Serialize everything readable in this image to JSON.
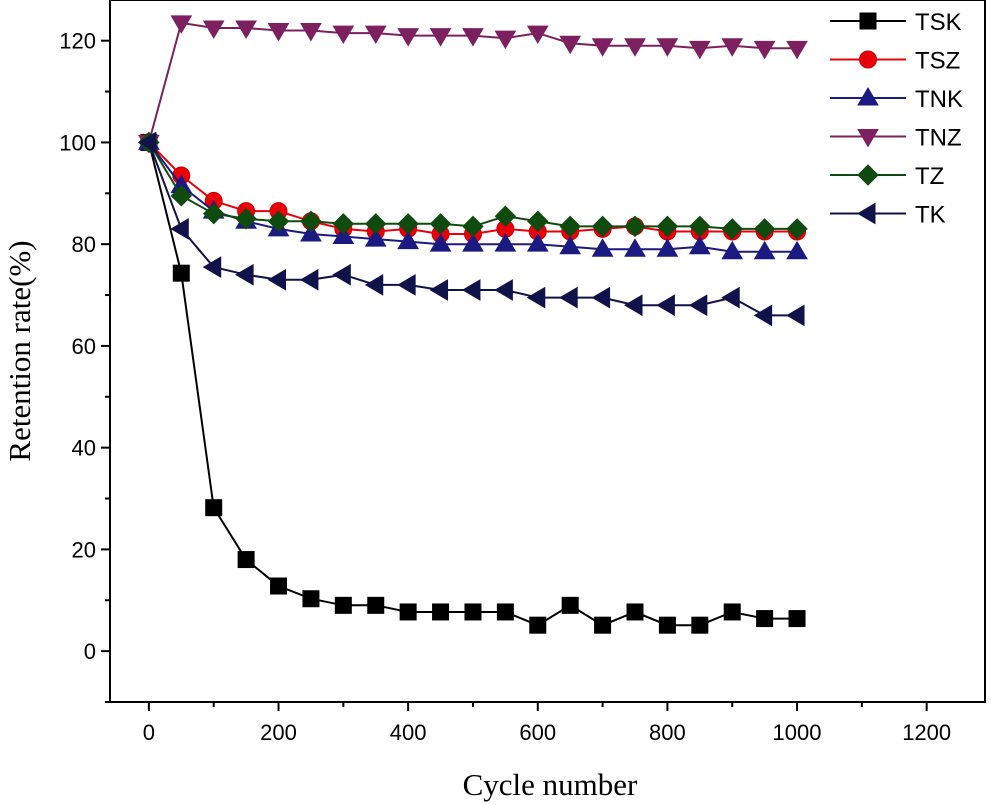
{
  "chart_data": {
    "type": "line",
    "title": "",
    "xlabel": "Cycle number",
    "ylabel": "Retention rate(%)",
    "xlim": [
      -60,
      1290
    ],
    "ylim": [
      -10,
      128
    ],
    "xticks": [
      0,
      200,
      400,
      600,
      800,
      1000,
      1200
    ],
    "yticks": [
      0,
      20,
      40,
      60,
      80,
      100,
      120
    ],
    "x": [
      0,
      50,
      100,
      150,
      200,
      250,
      300,
      350,
      400,
      450,
      500,
      550,
      600,
      650,
      700,
      750,
      800,
      850,
      900,
      950,
      1000
    ],
    "grid": false,
    "legend_position": "top-right",
    "series": [
      {
        "name": "TSK",
        "color": "#000000",
        "marker": "square",
        "values": [
          100,
          74.3,
          28.2,
          18,
          12.8,
          10.3,
          9,
          9,
          7.7,
          7.7,
          7.7,
          7.7,
          5.1,
          9,
          5.1,
          7.7,
          5.1,
          5.1,
          7.7,
          6.4,
          6.4
        ]
      },
      {
        "name": "TSZ",
        "color": "#e8000b",
        "marker": "circle",
        "values": [
          100,
          93.5,
          88.5,
          86.5,
          86.5,
          84.5,
          83,
          82.5,
          83,
          82,
          82,
          83,
          82.5,
          82.5,
          83,
          83.5,
          82.5,
          82.5,
          82.5,
          82.5,
          82.5
        ]
      },
      {
        "name": "TNK",
        "color": "#1a1a80",
        "marker": "triangle-up",
        "values": [
          100,
          91.5,
          86.5,
          84.5,
          83,
          82,
          81.5,
          81,
          80.5,
          80,
          80,
          80,
          80,
          79.5,
          79,
          79,
          79,
          79.5,
          78.5,
          78.5,
          78.5
        ]
      },
      {
        "name": "TNZ",
        "color": "#7d2060",
        "marker": "triangle-down",
        "values": [
          100,
          123.5,
          122.5,
          122.5,
          122,
          122,
          121.5,
          121.5,
          121,
          121,
          121,
          120.5,
          121.5,
          119.5,
          119,
          119,
          119,
          118.5,
          119,
          118.5,
          118.5
        ]
      },
      {
        "name": "TZ",
        "color": "#0f4a0f",
        "marker": "diamond",
        "values": [
          100,
          89.5,
          86,
          85,
          84.5,
          84.5,
          84,
          84,
          84,
          84,
          83.5,
          85.5,
          84.5,
          83.5,
          83.5,
          83.5,
          83.5,
          83.5,
          83,
          83,
          83
        ]
      },
      {
        "name": "TK",
        "color": "#12124a",
        "marker": "triangle-left",
        "values": [
          100,
          83,
          75.5,
          74,
          73,
          73,
          74,
          72,
          72,
          71,
          71,
          71,
          69.5,
          69.5,
          69.5,
          68,
          68,
          68,
          69.5,
          66,
          66
        ]
      }
    ]
  }
}
